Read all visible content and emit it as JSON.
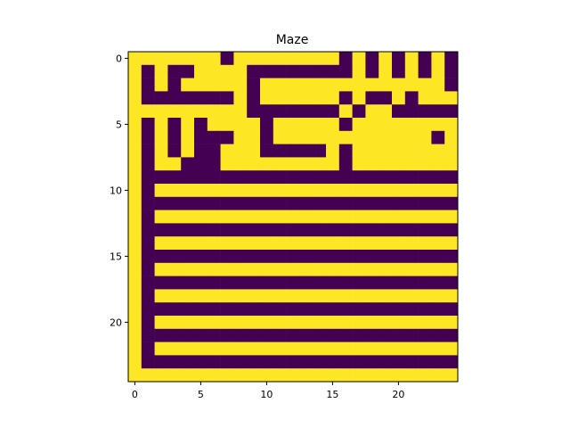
{
  "chart_data": {
    "type": "heatmap",
    "title": "Maze",
    "xlabel": "",
    "ylabel": "",
    "x_ticks": [
      0,
      5,
      10,
      15,
      20
    ],
    "y_ticks": [
      0,
      5,
      10,
      15,
      20
    ],
    "rows": 25,
    "cols": 25,
    "colormap": {
      "1": "#fde725",
      "0": "#440154"
    },
    "grid": false,
    "grid_values": [
      "1111111011111111010101010",
      "1010011110000000010101010",
      "1010111110111111111111110",
      "1000000010111111010010111",
      "1111111110000000101100000",
      "1010101111011111011111111",
      "1010100011011111111111101",
      "1010100111000001011111111",
      "1011000111111111011111111",
      "1000000000000000000000000",
      "1011111111111111111111111",
      "1000000000000000000000000",
      "1011111111111111111111111",
      "1000000000000000000000000",
      "1011111111111111111111111",
      "1000000000000000000000000",
      "1011111111111111111111111",
      "1000000000000000000000000",
      "1011111111111111111111111",
      "1000000000000000000000000",
      "1011111111111111111111111",
      "1000000000000000000000000",
      "1011111111111111111111111",
      "1000000000000000000000000",
      "1111111111111111111111111"
    ]
  }
}
